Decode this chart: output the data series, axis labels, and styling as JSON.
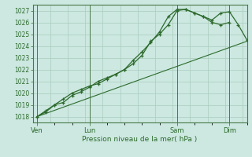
{
  "xlabel": "Pression niveau de la mer( hPa )",
  "bg_color": "#cce8e0",
  "grid_color": "#aaccbe",
  "line_color": "#2d6a2d",
  "spine_color": "#4a7a4a",
  "ylim": [
    1017.5,
    1027.5
  ],
  "yticks": [
    1018,
    1019,
    1020,
    1021,
    1022,
    1023,
    1024,
    1025,
    1026,
    1027
  ],
  "xtick_labels": [
    "Ven",
    "Lun",
    "Sam",
    "Dim"
  ],
  "xtick_pos": [
    0,
    24,
    64,
    88
  ],
  "xlim": [
    -2,
    96
  ],
  "straight_line_x": [
    0,
    96
  ],
  "straight_line_y": [
    1018.0,
    1024.4
  ],
  "line2_x": [
    0,
    4,
    8,
    12,
    16,
    20,
    24,
    28,
    32,
    36,
    40,
    44,
    48,
    52,
    56,
    60,
    64,
    68,
    72,
    76,
    80,
    84,
    88,
    92,
    96
  ],
  "line2_y": [
    1018.0,
    1018.5,
    1019.0,
    1019.2,
    1019.8,
    1020.1,
    1020.5,
    1021.0,
    1021.3,
    1021.6,
    1022.0,
    1022.5,
    1023.2,
    1024.4,
    1025.0,
    1025.8,
    1027.0,
    1027.1,
    1026.8,
    1026.5,
    1026.2,
    1026.8,
    1026.9,
    1025.8,
    1024.5
  ],
  "line3_x": [
    0,
    4,
    8,
    12,
    16,
    20,
    24,
    28,
    32,
    36,
    40,
    44,
    48,
    52,
    56,
    60,
    64,
    68,
    72,
    76,
    80,
    84,
    88
  ],
  "line3_y": [
    1018.0,
    1018.4,
    1019.0,
    1019.5,
    1020.0,
    1020.3,
    1020.6,
    1020.8,
    1021.2,
    1021.6,
    1022.0,
    1022.8,
    1023.5,
    1024.3,
    1025.2,
    1026.5,
    1027.1,
    1027.1,
    1026.8,
    1026.5,
    1026.0,
    1025.8,
    1026.0
  ],
  "ytick_fontsize": 5.5,
  "xtick_fontsize": 6.0,
  "xlabel_fontsize": 6.5
}
